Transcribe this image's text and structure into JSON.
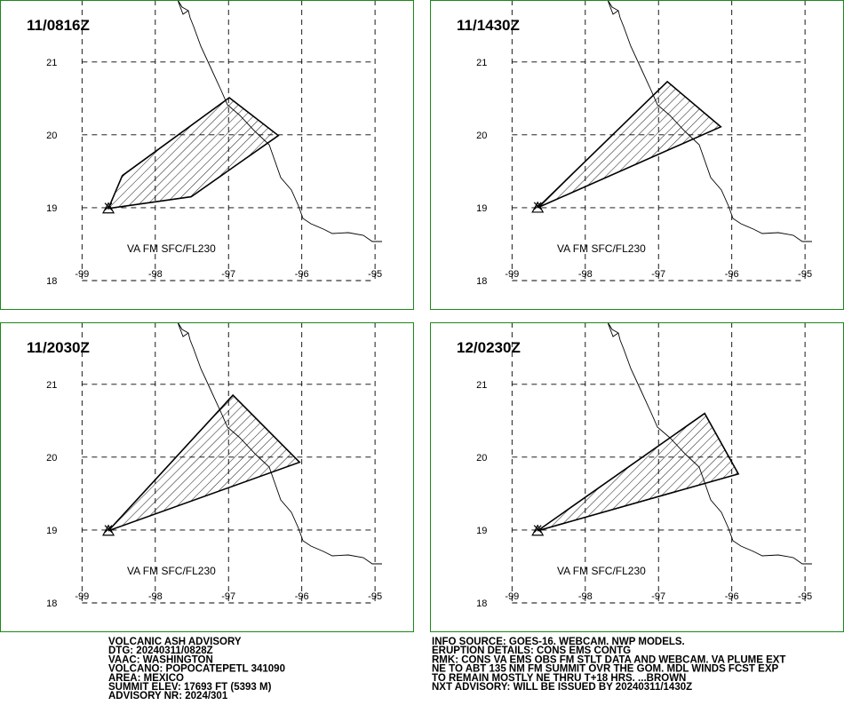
{
  "panels": [
    {
      "title": "11/0816Z",
      "label": "VA FM SFC/FL230",
      "xlim": [
        -100.12,
        -94.48
      ],
      "ylim": [
        17.61,
        21.85
      ],
      "xticks": [
        -99,
        -98,
        -97,
        -96,
        -95
      ],
      "yticks": [
        18,
        19,
        20,
        21
      ],
      "ash_polygon": {
        "lon": [
          -98.64,
          -98.45,
          -96.99,
          -96.32,
          -97.51
        ],
        "lat": [
          18.99,
          19.44,
          20.51,
          19.99,
          19.15
        ]
      }
    },
    {
      "title": "11/1430Z",
      "label": "VA FM SFC/FL230",
      "xlim": [
        -100.12,
        -94.48
      ],
      "ylim": [
        17.61,
        21.85
      ],
      "xticks": [
        -99,
        -98,
        -97,
        -96,
        -95
      ],
      "yticks": [
        18,
        19,
        20,
        21
      ],
      "ash_polygon": {
        "lon": [
          -98.65,
          -96.88,
          -96.15
        ],
        "lat": [
          19.0,
          20.73,
          20.11
        ]
      }
    },
    {
      "title": "11/2030Z",
      "label": "VA FM SFC/FL230",
      "xlim": [
        -100.12,
        -94.48
      ],
      "ylim": [
        17.61,
        21.85
      ],
      "xticks": [
        -99,
        -98,
        -97,
        -96,
        -95
      ],
      "yticks": [
        18,
        19,
        20,
        21
      ],
      "ash_polygon": {
        "lon": [
          -98.64,
          -96.94,
          -96.03
        ],
        "lat": [
          18.99,
          20.85,
          19.93
        ]
      }
    },
    {
      "title": "12/0230Z",
      "label": "VA FM SFC/FL230",
      "xlim": [
        -100.12,
        -94.48
      ],
      "ylim": [
        17.61,
        21.85
      ],
      "xticks": [
        -99,
        -98,
        -97,
        -96,
        -95
      ],
      "yticks": [
        18,
        19,
        20,
        21
      ],
      "ash_polygon": {
        "lon": [
          -98.65,
          -96.37,
          -95.91
        ],
        "lat": [
          18.99,
          20.6,
          19.77
        ]
      }
    }
  ],
  "advisory_left": [
    "VOLCANIC ASH ADVISORY",
    "DTG: 20240311/0828Z",
    "VAAC: WASHINGTON",
    "VOLCANO: POPOCATEPETL 341090",
    "AREA: MEXICO",
    "SUMMIT ELEV: 17693 FT (5393 M)",
    "ADVISORY NR: 2024/301"
  ],
  "advisory_right": [
    "INFO SOURCE: GOES-16. WEBCAM. NWP MODELS.",
    "ERUPTION DETAILS: CONS EMS CONTG",
    "RMK: CONS VA EMS OBS FM STLT DATA AND WEBCAM. VA PLUME EXT",
    "NE TO ABT 135 NM FM SUMMIT OVR THE GOM. MDL WINDS FCST EXP",
    "TO REMAIN MOSTLY NE THRU T+18 HRS. ...BROWN",
    "NXT ADVISORY: WILL BE ISSUED BY 20240311/1430Z"
  ]
}
